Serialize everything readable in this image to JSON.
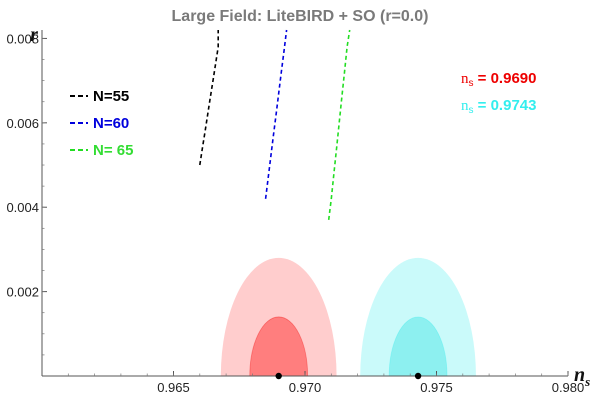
{
  "chart_data": {
    "type": "scatter",
    "title": "Large Field: LiteBIRD + SO (r=0.0)",
    "xlabel": "n",
    "xlabel_sub": "s",
    "ylabel": "r",
    "xlim": [
      0.96,
      0.98
    ],
    "ylim": [
      0.0,
      0.0082
    ],
    "xticks": [
      {
        "value": 0.965,
        "label": "0.965"
      },
      {
        "value": 0.97,
        "label": "0.970"
      },
      {
        "value": 0.975,
        "label": "0.975"
      },
      {
        "value": 0.98,
        "label": "0.980"
      }
    ],
    "yticks": [
      {
        "value": 0.002,
        "label": "0.002"
      },
      {
        "value": 0.004,
        "label": "0.004"
      },
      {
        "value": 0.006,
        "label": "0.006"
      },
      {
        "value": 0.008,
        "label": "0.008"
      }
    ],
    "series": [
      {
        "name": "N=55",
        "legend_label": "N=55",
        "color": "#000000",
        "style": "dashed",
        "points": [
          [
            0.966,
            0.005
          ],
          [
            0.9661,
            0.0054
          ],
          [
            0.9662,
            0.0058
          ],
          [
            0.9663,
            0.0062
          ],
          [
            0.9664,
            0.0066
          ],
          [
            0.9665,
            0.007
          ],
          [
            0.9666,
            0.0074
          ],
          [
            0.9667,
            0.0078
          ],
          [
            0.9667,
            0.0082
          ]
        ]
      },
      {
        "name": "N=60",
        "legend_label": "N=60",
        "color": "#0000dd",
        "style": "dashed",
        "points": [
          [
            0.9685,
            0.0042
          ],
          [
            0.9686,
            0.0047
          ],
          [
            0.9687,
            0.0052
          ],
          [
            0.9688,
            0.0057
          ],
          [
            0.9689,
            0.0062
          ],
          [
            0.969,
            0.0067
          ],
          [
            0.9691,
            0.0072
          ],
          [
            0.9692,
            0.0077
          ],
          [
            0.9693,
            0.0082
          ]
        ]
      },
      {
        "name": "N= 65",
        "legend_label": "N= 65",
        "color": "#22dd22",
        "style": "dashed",
        "points": [
          [
            0.9709,
            0.0037
          ],
          [
            0.971,
            0.0042
          ],
          [
            0.9711,
            0.0048
          ],
          [
            0.9712,
            0.0054
          ],
          [
            0.9713,
            0.006
          ],
          [
            0.9714,
            0.0066
          ],
          [
            0.9715,
            0.0072
          ],
          [
            0.9716,
            0.0078
          ],
          [
            0.9717,
            0.0082
          ]
        ]
      }
    ],
    "forecasts": [
      {
        "ns": 0.969,
        "label": "n",
        "label_sub": "s",
        "label_value": " = 0.9690",
        "color": "#ee0000",
        "sigma1": {
          "dns": 0.0011,
          "r_max": 0.0014,
          "color": "#ff6a6a"
        },
        "sigma2": {
          "dns": 0.0022,
          "r_max": 0.0028,
          "color": "#ffbcbc"
        }
      },
      {
        "ns": 0.9743,
        "label": "n",
        "label_sub": "s",
        "label_value": " = 0.9743",
        "color": "#33eeee",
        "sigma1": {
          "dns": 0.0011,
          "r_max": 0.0014,
          "color": "#7deeee"
        },
        "sigma2": {
          "dns": 0.0022,
          "r_max": 0.0028,
          "color": "#b8f8f8"
        }
      }
    ],
    "grid": false,
    "legend_position": "top-left"
  }
}
